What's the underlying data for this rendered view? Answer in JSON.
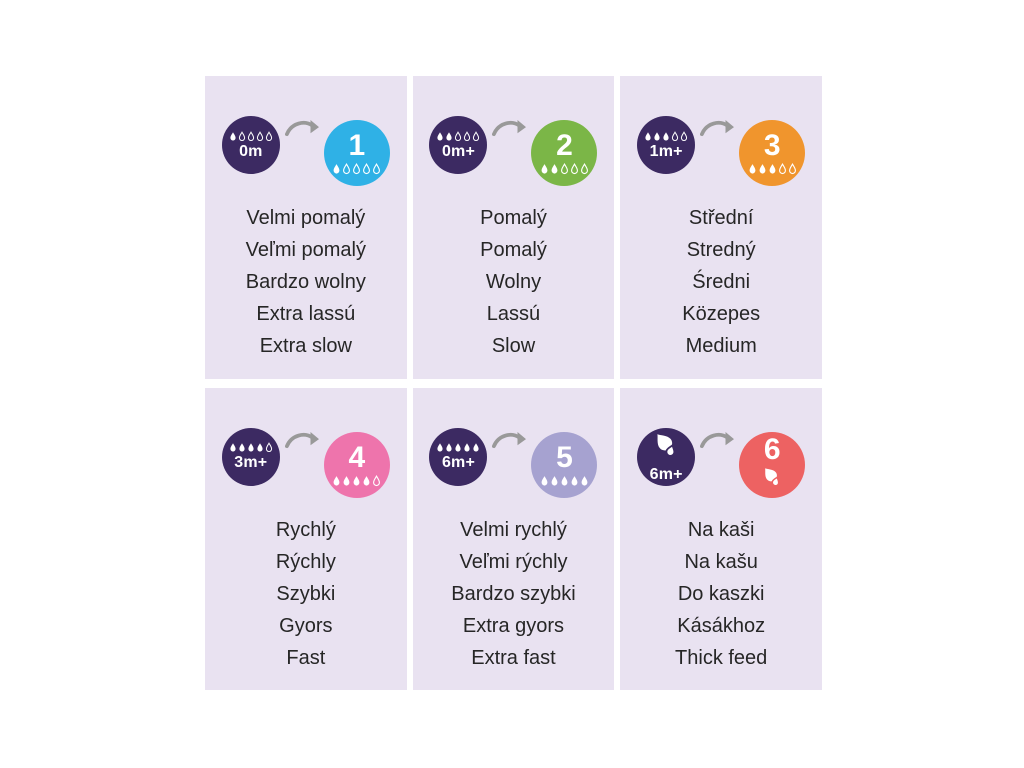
{
  "page": {
    "background_color": "#ffffff",
    "card_background_color": "#e9e2f1",
    "text_color": "#262626",
    "arrow_color": "#999999",
    "age_circle_color": "#3c2a62",
    "icon_color": "#ffffff"
  },
  "cards": [
    {
      "number": "1",
      "circle_color": "#2fb1e6",
      "age_label": "0m",
      "icon": "droplets",
      "drops_filled": 1,
      "drops_total": 5,
      "names": [
        "Velmi pomalý",
        "Veľmi pomalý",
        "Bardzo wolny",
        "Extra lassú",
        "Extra slow"
      ]
    },
    {
      "number": "2",
      "circle_color": "#7bb647",
      "age_label": "0m+",
      "icon": "droplets",
      "drops_filled": 2,
      "drops_total": 5,
      "names": [
        "Pomalý",
        "Pomalý",
        "Wolny",
        "Lassú",
        "Slow"
      ]
    },
    {
      "number": "3",
      "circle_color": "#f0952d",
      "age_label": "1m+",
      "icon": "droplets",
      "drops_filled": 3,
      "drops_total": 5,
      "names": [
        "Střední",
        "Stredný",
        "Średni",
        "Közepes",
        "Medium"
      ]
    },
    {
      "number": "4",
      "circle_color": "#ee74ac",
      "age_label": "3m+",
      "icon": "droplets",
      "drops_filled": 4,
      "drops_total": 5,
      "names": [
        "Rychlý",
        "Rýchly",
        "Szybki",
        "Gyors",
        "Fast"
      ]
    },
    {
      "number": "5",
      "circle_color": "#a6a2d0",
      "age_label": "6m+",
      "icon": "droplets",
      "drops_filled": 5,
      "drops_total": 5,
      "names": [
        "Velmi rychlý",
        "Veľmi rýchly",
        "Bardzo szybki",
        "Extra gyors",
        "Extra fast"
      ]
    },
    {
      "number": "6",
      "circle_color": "#ed6262",
      "age_label": "6m+",
      "icon": "thick-feed",
      "names": [
        "Na kaši",
        "Na kašu",
        "Do kaszki",
        "Kásákhoz",
        "Thick feed"
      ]
    }
  ]
}
